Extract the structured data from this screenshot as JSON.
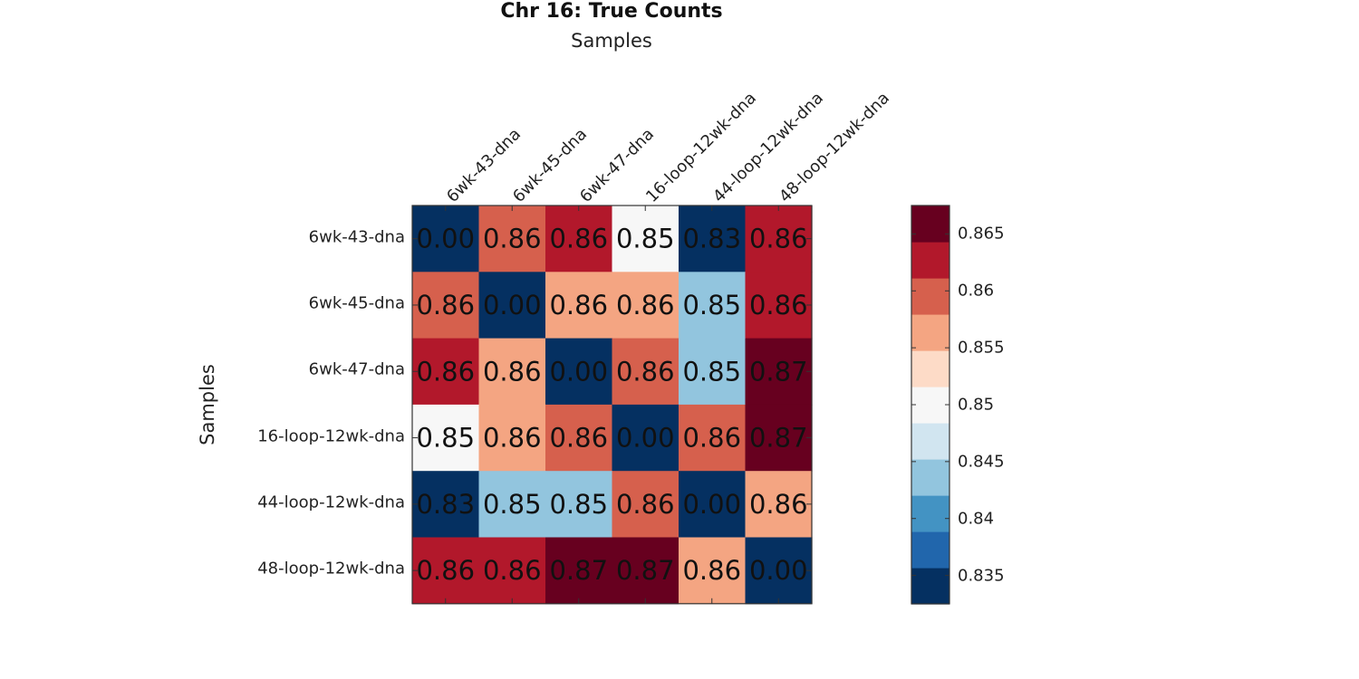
{
  "chart_data": {
    "type": "heatmap",
    "title": "Chr 16: True Counts",
    "xlabel": "Samples",
    "ylabel": "Samples",
    "row_labels": [
      "6wk-43-dna",
      "6wk-45-dna",
      "6wk-47-dna",
      "16-loop-12wk-dna",
      "44-loop-12wk-dna",
      "48-loop-12wk-dna"
    ],
    "col_labels": [
      "6wk-43-dna",
      "6wk-45-dna",
      "6wk-47-dna",
      "16-loop-12wk-dna",
      "44-loop-12wk-dna",
      "48-loop-12wk-dna"
    ],
    "values": [
      [
        0.0,
        0.86,
        0.86,
        0.85,
        0.83,
        0.86
      ],
      [
        0.86,
        0.0,
        0.86,
        0.86,
        0.85,
        0.86
      ],
      [
        0.86,
        0.86,
        0.0,
        0.86,
        0.85,
        0.87
      ],
      [
        0.85,
        0.86,
        0.86,
        0.0,
        0.86,
        0.87
      ],
      [
        0.83,
        0.85,
        0.85,
        0.86,
        0.0,
        0.86
      ],
      [
        0.86,
        0.86,
        0.87,
        0.87,
        0.86,
        0.0
      ]
    ],
    "cell_labels": [
      [
        "0.00",
        "0.86",
        "0.86",
        "0.85",
        "0.83",
        "0.86"
      ],
      [
        "0.86",
        "0.00",
        "0.86",
        "0.86",
        "0.85",
        "0.86"
      ],
      [
        "0.86",
        "0.86",
        "0.00",
        "0.86",
        "0.85",
        "0.87"
      ],
      [
        "0.85",
        "0.86",
        "0.86",
        "0.00",
        "0.86",
        "0.87"
      ],
      [
        "0.83",
        "0.85",
        "0.85",
        "0.86",
        "0.00",
        "0.86"
      ],
      [
        "0.86",
        "0.86",
        "0.87",
        "0.87",
        "0.86",
        "0.00"
      ]
    ],
    "cell_colors": [
      [
        "#053061",
        "#d6604d",
        "#b2182b",
        "#f7f7f7",
        "#053061",
        "#b2182b"
      ],
      [
        "#d6604d",
        "#053061",
        "#f4a582",
        "#f4a582",
        "#92c5de",
        "#b2182b"
      ],
      [
        "#b2182b",
        "#f4a582",
        "#053061",
        "#d6604d",
        "#92c5de",
        "#67001f"
      ],
      [
        "#f7f7f7",
        "#f4a582",
        "#d6604d",
        "#053061",
        "#d6604d",
        "#67001f"
      ],
      [
        "#053061",
        "#92c5de",
        "#92c5de",
        "#d6604d",
        "#053061",
        "#f4a582"
      ],
      [
        "#b2182b",
        "#b2182b",
        "#67001f",
        "#67001f",
        "#f4a582",
        "#053061"
      ]
    ],
    "colorbar": {
      "range": [
        0.8325,
        0.8675
      ],
      "colors": [
        "#053061",
        "#2166ac",
        "#4393c3",
        "#92c5de",
        "#d1e5f0",
        "#f7f7f7",
        "#fddbc7",
        "#f4a582",
        "#d6604d",
        "#b2182b",
        "#67001f"
      ],
      "ticks": [
        0.835,
        0.84,
        0.845,
        0.85,
        0.855,
        0.86,
        0.865
      ],
      "tick_labels": [
        "0.835",
        "0.84",
        "0.845",
        "0.85",
        "0.855",
        "0.86",
        "0.865"
      ]
    },
    "grid": false,
    "legend": "colorbar-right"
  }
}
